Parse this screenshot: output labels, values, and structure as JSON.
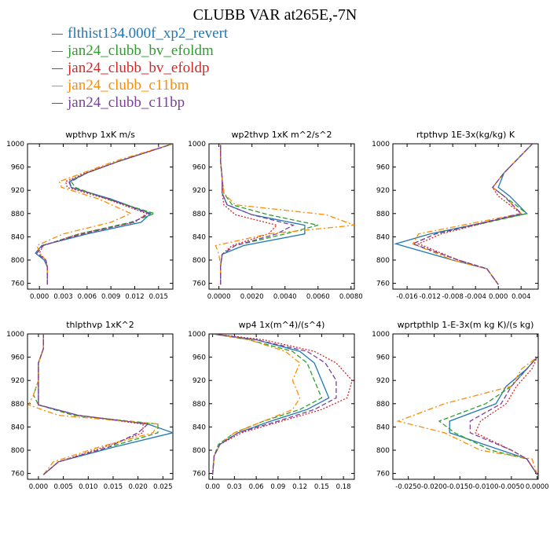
{
  "figure": {
    "title": "CLUBB VAR at265E,-7N",
    "legend": [
      {
        "name": "flthist134.000f_xp2_revert",
        "color": "#1f77b4"
      },
      {
        "name": "jan24_clubb_bv_efoldm",
        "color": "#2ca02c"
      },
      {
        "name": "jan24_clubb_bv_efoldp",
        "color": "#d62728"
      },
      {
        "name": "jan24_clubb_c11bm",
        "color": "#ff8c00"
      },
      {
        "name": "jan24_clubb_c11bp",
        "color": "#7b3f9e"
      }
    ],
    "line_styles": [
      "solid",
      "dashed",
      "dotted",
      "dashdot",
      "dashed"
    ]
  },
  "chart_data": [
    {
      "type": "line",
      "title": "wpthvp  1xK m/s",
      "ylim": [
        1000,
        750
      ],
      "yticks": [
        "760",
        "800",
        "840",
        "880",
        "920",
        "960",
        "1000"
      ],
      "xlim": [
        -0.0015,
        0.0168
      ],
      "xticks": [
        "0.000",
        "0.003",
        "0.006",
        "0.009",
        "0.012",
        "0.015"
      ],
      "y": [
        758,
        788,
        800,
        812,
        825,
        845,
        865,
        880,
        905,
        925,
        935,
        950,
        970,
        1000
      ],
      "series": [
        {
          "values": [
            0.001,
            0.001,
            0.0006,
            -0.0005,
            0.0003,
            0.006,
            0.0128,
            0.014,
            0.009,
            0.004,
            0.0038,
            0.006,
            0.01,
            0.0168
          ]
        },
        {
          "values": [
            0.001,
            0.001,
            0.0008,
            -0.0003,
            0.0005,
            0.005,
            0.0115,
            0.0145,
            0.0085,
            0.0045,
            0.004,
            0.006,
            0.01,
            0.0168
          ]
        },
        {
          "values": [
            0.001,
            0.001,
            0.0008,
            0.0,
            0.0005,
            0.005,
            0.012,
            0.0135,
            0.0085,
            0.0035,
            0.0033,
            0.0058,
            0.01,
            0.0168
          ]
        },
        {
          "values": [
            0.001,
            0.001,
            0.0008,
            0.0,
            -0.0003,
            0.003,
            0.009,
            0.0115,
            0.0075,
            0.0028,
            0.0025,
            0.0055,
            0.0095,
            0.0168
          ]
        },
        {
          "values": [
            0.001,
            0.001,
            0.0008,
            -0.0003,
            0.0004,
            0.0055,
            0.0118,
            0.0138,
            0.0088,
            0.004,
            0.0037,
            0.006,
            0.01,
            0.0168
          ]
        }
      ]
    },
    {
      "type": "line",
      "title": "wp2thvp  1xK m^2/s^2",
      "ylim": [
        1000,
        750
      ],
      "yticks": [
        "760",
        "800",
        "840",
        "880",
        "920",
        "960",
        "1000"
      ],
      "xlim": [
        -0.0006,
        0.0082
      ],
      "xticks": [
        "0.0000",
        "0.0020",
        "0.0040",
        "0.0060",
        "0.0080"
      ],
      "y": [
        758,
        790,
        810,
        825,
        845,
        860,
        878,
        895,
        915,
        940,
        970,
        1000
      ],
      "series": [
        {
          "values": [
            0.0001,
            0.0001,
            0.0002,
            0.0015,
            0.0052,
            0.0052,
            0.002,
            0.0005,
            0.0002,
            0.0002,
            0.0001,
            0.0001
          ]
        },
        {
          "values": [
            0.0001,
            0.0001,
            0.0002,
            0.001,
            0.004,
            0.006,
            0.003,
            0.0008,
            0.0003,
            0.0002,
            0.0001,
            0.0001
          ]
        },
        {
          "values": [
            0.0001,
            0.0001,
            0.0002,
            0.0008,
            0.003,
            0.0035,
            0.001,
            0.0003,
            0.0002,
            0.0002,
            0.0001,
            0.0001
          ]
        },
        {
          "values": [
            0.0001,
            0.0001,
            0.0,
            -0.0002,
            0.003,
            0.0082,
            0.0065,
            0.001,
            0.0003,
            0.0002,
            0.0001,
            0.0001
          ]
        },
        {
          "values": [
            0.0001,
            0.0001,
            0.0002,
            0.001,
            0.0035,
            0.0045,
            0.002,
            0.0005,
            0.0002,
            0.0002,
            0.0001,
            0.0001
          ]
        }
      ]
    },
    {
      "type": "line",
      "title": "rtpthvp  1E-3x(kg/kg) K",
      "ylim": [
        1000,
        750
      ],
      "yticks": [
        "760",
        "800",
        "840",
        "880",
        "920",
        "960",
        "1000"
      ],
      "xlim": [
        -0.0185,
        0.007
      ],
      "xticks": [
        "-0.016",
        "-0.012",
        "-0.008",
        "-0.004",
        "0.000",
        "0.004"
      ],
      "y": [
        758,
        785,
        800,
        828,
        845,
        880,
        910,
        925,
        950,
        980,
        1000
      ],
      "series": [
        {
          "values": [
            0.0,
            -0.002,
            -0.008,
            -0.018,
            -0.012,
            0.005,
            0.002,
            0.0,
            0.001,
            0.004,
            0.006
          ]
        },
        {
          "values": [
            0.0,
            -0.002,
            -0.007,
            -0.015,
            -0.011,
            0.005,
            0.001,
            -0.001,
            0.001,
            0.004,
            0.006
          ]
        },
        {
          "values": [
            0.0,
            -0.002,
            -0.007,
            -0.014,
            -0.01,
            0.004,
            0.0,
            -0.001,
            0.001,
            0.004,
            0.006
          ]
        },
        {
          "values": [
            0.0,
            -0.002,
            -0.008,
            -0.015,
            -0.014,
            0.004,
            0.001,
            -0.001,
            0.001,
            0.004,
            0.006
          ]
        },
        {
          "values": [
            0.0,
            -0.002,
            -0.007,
            -0.015,
            -0.011,
            0.004,
            0.001,
            -0.001,
            0.001,
            0.004,
            0.006
          ]
        }
      ]
    },
    {
      "type": "line",
      "title": "thlpthvp  1xK^2",
      "ylim": [
        1000,
        750
      ],
      "yticks": [
        "760",
        "800",
        "840",
        "880",
        "920",
        "960",
        "1000"
      ],
      "xlim": [
        -0.0022,
        0.027
      ],
      "xticks": [
        "0.000",
        "0.005",
        "0.010",
        "0.015",
        "0.020",
        "0.025"
      ],
      "y": [
        758,
        780,
        805,
        830,
        845,
        860,
        878,
        895,
        920,
        950,
        975,
        1000
      ],
      "series": [
        {
          "values": [
            0.001,
            0.004,
            0.015,
            0.027,
            0.022,
            0.008,
            0.0,
            0.0,
            0.0,
            0.0,
            0.001,
            0.001
          ]
        },
        {
          "values": [
            0.001,
            0.004,
            0.014,
            0.024,
            0.024,
            0.007,
            0.0,
            -0.001,
            0.0,
            0.0,
            0.001,
            0.001
          ]
        },
        {
          "values": [
            0.001,
            0.004,
            0.013,
            0.021,
            0.021,
            0.008,
            0.0,
            0.0,
            0.0,
            0.0,
            0.001,
            0.001
          ]
        },
        {
          "values": [
            0.001,
            0.003,
            0.012,
            0.023,
            0.024,
            0.004,
            -0.002,
            -0.001,
            0.0,
            0.0,
            0.001,
            0.001
          ]
        },
        {
          "values": [
            0.001,
            0.004,
            0.014,
            0.02,
            0.022,
            0.008,
            0.0,
            0.0,
            0.0,
            0.0,
            0.001,
            0.001
          ]
        }
      ]
    },
    {
      "type": "line",
      "title": "wp4  1x(m^4)/(s^4)",
      "ylim": [
        1000,
        750
      ],
      "yticks": [
        "760",
        "800",
        "840",
        "880",
        "920",
        "960",
        "1000"
      ],
      "xlim": [
        -0.005,
        0.195
      ],
      "xticks": [
        "0.00",
        "0.03",
        "0.06",
        "0.09",
        "0.12",
        "0.15",
        "0.18"
      ],
      "y": [
        758,
        790,
        810,
        830,
        850,
        870,
        890,
        920,
        950,
        970,
        990,
        1000
      ],
      "series": [
        {
          "values": [
            0.0,
            0.002,
            0.01,
            0.035,
            0.08,
            0.13,
            0.16,
            0.15,
            0.14,
            0.12,
            0.06,
            0.0
          ]
        },
        {
          "values": [
            0.0,
            0.002,
            0.008,
            0.03,
            0.07,
            0.12,
            0.15,
            0.14,
            0.13,
            0.11,
            0.05,
            0.0
          ]
        },
        {
          "values": [
            0.0,
            0.002,
            0.01,
            0.04,
            0.095,
            0.15,
            0.185,
            0.192,
            0.17,
            0.14,
            0.07,
            0.0
          ]
        },
        {
          "values": [
            0.0,
            0.002,
            0.01,
            0.03,
            0.07,
            0.11,
            0.12,
            0.11,
            0.12,
            0.1,
            0.05,
            0.0
          ]
        },
        {
          "values": [
            0.0,
            0.002,
            0.01,
            0.035,
            0.09,
            0.14,
            0.17,
            0.17,
            0.155,
            0.13,
            0.06,
            0.0
          ]
        }
      ]
    },
    {
      "type": "line",
      "title": "wprtpthlp  1-E-3x(m kg K)/(s kg)",
      "ylim": [
        1000,
        750
      ],
      "yticks": [
        "760",
        "800",
        "840",
        "880",
        "920",
        "960",
        "1000"
      ],
      "xlim": [
        -0.028,
        0.0002
      ],
      "xticks": [
        "-0.0250",
        "-0.0200",
        "-0.0150",
        "-0.0100",
        "-0.0050",
        "0.0000"
      ],
      "y": [
        758,
        785,
        800,
        830,
        850,
        880,
        910,
        940,
        960
      ],
      "series": [
        {
          "values": [
            0.0,
            -0.002,
            -0.007,
            -0.017,
            -0.017,
            -0.008,
            -0.006,
            -0.002,
            0.0
          ]
        },
        {
          "values": [
            0.0,
            -0.002,
            -0.009,
            -0.016,
            -0.019,
            -0.01,
            -0.005,
            -0.002,
            0.0
          ]
        },
        {
          "values": [
            0.0,
            -0.002,
            -0.005,
            -0.012,
            -0.011,
            -0.006,
            -0.004,
            -0.001,
            0.0
          ]
        },
        {
          "values": [
            0.0,
            -0.001,
            -0.011,
            -0.018,
            -0.027,
            -0.018,
            -0.005,
            -0.003,
            0.0
          ]
        },
        {
          "values": [
            0.0,
            -0.002,
            -0.005,
            -0.013,
            -0.013,
            -0.007,
            -0.005,
            -0.002,
            0.0
          ]
        }
      ]
    }
  ]
}
